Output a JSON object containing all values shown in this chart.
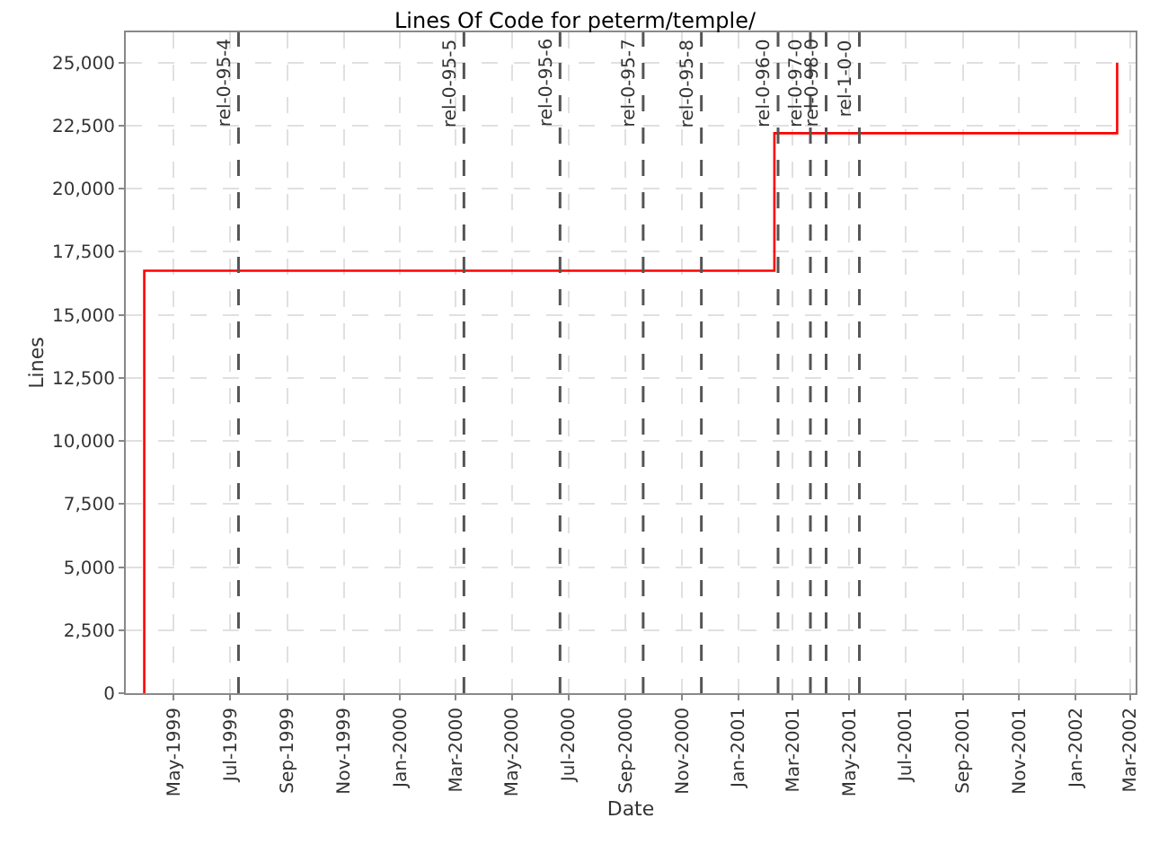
{
  "chart_data": {
    "type": "step",
    "title": "Lines Of Code for peterm/temple/",
    "xlabel": "Date",
    "ylabel": "Lines",
    "x": [
      "1999-03-30",
      "1999-03-30",
      "2001-02-09",
      "2002-02-15"
    ],
    "series": [
      {
        "color": "#ff0000",
        "values": [
          0,
          16750,
          22200,
          25000
        ]
      }
    ],
    "xlim": [
      "1999-03-10",
      "2002-03-07"
    ],
    "xticks": [
      {
        "value": "1999-05-01",
        "label": "May-1999"
      },
      {
        "value": "1999-07-01",
        "label": "Jul-1999"
      },
      {
        "value": "1999-09-01",
        "label": "Sep-1999"
      },
      {
        "value": "1999-11-01",
        "label": "Nov-1999"
      },
      {
        "value": "2000-01-01",
        "label": "Jan-2000"
      },
      {
        "value": "2000-03-01",
        "label": "Mar-2000"
      },
      {
        "value": "2000-05-01",
        "label": "May-2000"
      },
      {
        "value": "2000-07-01",
        "label": "Jul-2000"
      },
      {
        "value": "2000-09-01",
        "label": "Sep-2000"
      },
      {
        "value": "2000-11-01",
        "label": "Nov-2000"
      },
      {
        "value": "2001-01-01",
        "label": "Jan-2001"
      },
      {
        "value": "2001-03-01",
        "label": "Mar-2001"
      },
      {
        "value": "2001-05-01",
        "label": "May-2001"
      },
      {
        "value": "2001-07-01",
        "label": "Jul-2001"
      },
      {
        "value": "2001-09-01",
        "label": "Sep-2001"
      },
      {
        "value": "2001-11-01",
        "label": "Nov-2001"
      },
      {
        "value": "2002-01-01",
        "label": "Jan-2002"
      },
      {
        "value": "2002-03-01",
        "label": "Mar-2002"
      }
    ],
    "ylim": [
      0,
      26200
    ],
    "yticks": [
      0,
      {
        "value": 2500,
        "label": "2,500"
      },
      {
        "value": 5000,
        "label": "5,000"
      },
      {
        "value": 7500,
        "label": "7,500"
      },
      {
        "value": 10000,
        "label": "10,000"
      },
      {
        "value": 12500,
        "label": "12,500"
      },
      {
        "value": 15000,
        "label": "15,000"
      },
      {
        "value": 17500,
        "label": "17,500"
      },
      {
        "value": 20000,
        "label": "20,000"
      },
      {
        "value": 22500,
        "label": "22,500"
      },
      {
        "value": 25000,
        "label": "25,000"
      }
    ],
    "grid": true,
    "marker": "none",
    "line_style": "solid",
    "ref_lines": [
      {
        "axis": "x",
        "value": "1999-07-10",
        "label": "rel-0-95-4",
        "color": "#555555",
        "line_style": "dashed"
      },
      {
        "axis": "x",
        "value": "2000-03-10",
        "label": "rel-0-95-5",
        "color": "#555555",
        "line_style": "dashed"
      },
      {
        "axis": "x",
        "value": "2000-06-22",
        "label": "rel-0-95-6",
        "color": "#555555",
        "line_style": "dashed"
      },
      {
        "axis": "x",
        "value": "2000-09-20",
        "label": "rel-0-95-7",
        "color": "#555555",
        "line_style": "dashed"
      },
      {
        "axis": "x",
        "value": "2000-11-22",
        "label": "rel-0-95-8",
        "color": "#555555",
        "line_style": "dashed"
      },
      {
        "axis": "x",
        "value": "2001-02-13",
        "label": "rel-0-96-0",
        "color": "#555555",
        "line_style": "dashed"
      },
      {
        "axis": "x",
        "value": "2001-03-20",
        "label": "rel-0-97-0",
        "color": "#555555",
        "line_style": "dashed"
      },
      {
        "axis": "x",
        "value": "2001-04-06",
        "label": "rel-0-98-0",
        "color": "#555555",
        "line_style": "dashed"
      },
      {
        "axis": "x",
        "value": "2001-05-12",
        "label": "rel-1-0-0",
        "color": "#555555",
        "line_style": "dashed"
      }
    ]
  }
}
